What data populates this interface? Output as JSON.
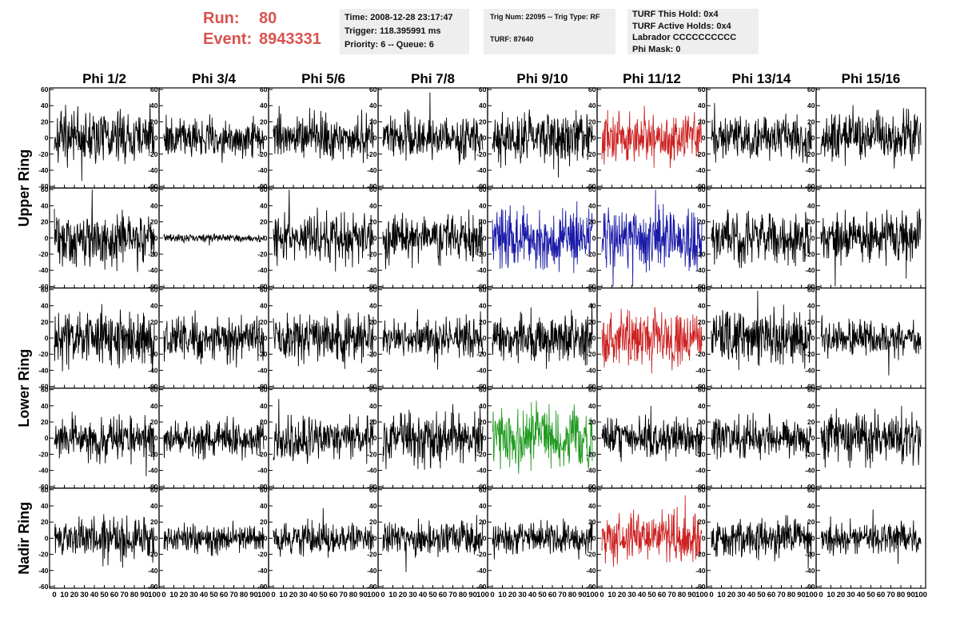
{
  "header": {
    "run_label": "Run:",
    "run_value": "80",
    "event_label": "Event:",
    "event_value": "8943331",
    "time_box": [
      "Time: 2008-12-28 23:17:47",
      "Trigger: 118.395991 ms",
      "Priority: 6 -- Queue: 6"
    ],
    "trig_box": [
      "Trig Num: 22095 -- Trig Type: RF",
      "",
      "TURF: 87640"
    ],
    "turf_box": [
      "TURF This Hold: 0x4",
      "TURF Active Holds: 0x4",
      "Labrador CCCCCCCCCC",
      "Phi Mask: 0"
    ]
  },
  "colors": {
    "header_red": "#d9534f",
    "trace_default": "#000000",
    "trace_red": "#cc2222",
    "trace_blue": "#1a1aa8",
    "trace_green": "#1f9a1f",
    "info_box_bg": "#eeeeee"
  },
  "chart_data": {
    "type": "line",
    "title": "",
    "column_labels": [
      "Phi 1/2",
      "Phi 3/4",
      "Phi 5/6",
      "Phi 7/8",
      "Phi 9/10",
      "Phi 11/12",
      "Phi 13/14",
      "Phi 15/16"
    ],
    "ring_labels": [
      "Upper Ring",
      "Lower Ring",
      "Nadir Ring"
    ],
    "ring_row_spans": [
      [
        0,
        1
      ],
      [
        2,
        3
      ],
      [
        4,
        4
      ]
    ],
    "rows": 5,
    "xlim": [
      0,
      100
    ],
    "ylim": [
      -62,
      62
    ],
    "x_ticks": [
      0,
      10,
      20,
      30,
      40,
      50,
      60,
      70,
      80,
      90,
      100
    ],
    "y_ticks": [
      -60,
      -40,
      -20,
      0,
      20,
      40,
      60
    ],
    "series_style": "sampled waveform (approx. 260 samples per panel, noise-like, shown as thin line)",
    "panels": [
      {
        "row": 0,
        "col": 0,
        "color": "black",
        "amplitude": 20
      },
      {
        "row": 0,
        "col": 1,
        "color": "black",
        "amplitude": 14
      },
      {
        "row": 0,
        "col": 2,
        "color": "black",
        "amplitude": 17
      },
      {
        "row": 0,
        "col": 3,
        "color": "black",
        "amplitude": 17
      },
      {
        "row": 0,
        "col": 4,
        "color": "black",
        "amplitude": 19
      },
      {
        "row": 0,
        "col": 5,
        "color": "red",
        "amplitude": 19
      },
      {
        "row": 0,
        "col": 6,
        "color": "black",
        "amplitude": 17
      },
      {
        "row": 0,
        "col": 7,
        "color": "black",
        "amplitude": 19
      },
      {
        "row": 1,
        "col": 0,
        "color": "black",
        "amplitude": 19
      },
      {
        "row": 1,
        "col": 1,
        "color": "black",
        "amplitude": 3
      },
      {
        "row": 1,
        "col": 2,
        "color": "black",
        "amplitude": 19
      },
      {
        "row": 1,
        "col": 3,
        "color": "black",
        "amplitude": 19
      },
      {
        "row": 1,
        "col": 4,
        "color": "blue",
        "amplitude": 22
      },
      {
        "row": 1,
        "col": 5,
        "color": "blue",
        "amplitude": 22
      },
      {
        "row": 1,
        "col": 6,
        "color": "black",
        "amplitude": 19
      },
      {
        "row": 1,
        "col": 7,
        "color": "black",
        "amplitude": 19
      },
      {
        "row": 2,
        "col": 0,
        "color": "black",
        "amplitude": 21
      },
      {
        "row": 2,
        "col": 1,
        "color": "black",
        "amplitude": 17
      },
      {
        "row": 2,
        "col": 2,
        "color": "black",
        "amplitude": 18
      },
      {
        "row": 2,
        "col": 3,
        "color": "black",
        "amplitude": 14
      },
      {
        "row": 2,
        "col": 4,
        "color": "black",
        "amplitude": 17
      },
      {
        "row": 2,
        "col": 5,
        "color": "red",
        "amplitude": 22
      },
      {
        "row": 2,
        "col": 6,
        "color": "black",
        "amplitude": 20
      },
      {
        "row": 2,
        "col": 7,
        "color": "black",
        "amplitude": 14
      },
      {
        "row": 3,
        "col": 0,
        "color": "black",
        "amplitude": 16
      },
      {
        "row": 3,
        "col": 1,
        "color": "black",
        "amplitude": 14
      },
      {
        "row": 3,
        "col": 2,
        "color": "black",
        "amplitude": 16
      },
      {
        "row": 3,
        "col": 3,
        "color": "black",
        "amplitude": 19
      },
      {
        "row": 3,
        "col": 4,
        "color": "green",
        "amplitude": 24
      },
      {
        "row": 3,
        "col": 5,
        "color": "black",
        "amplitude": 15
      },
      {
        "row": 3,
        "col": 6,
        "color": "black",
        "amplitude": 15
      },
      {
        "row": 3,
        "col": 7,
        "color": "black",
        "amplitude": 20
      },
      {
        "row": 4,
        "col": 0,
        "color": "black",
        "amplitude": 17
      },
      {
        "row": 4,
        "col": 1,
        "color": "black",
        "amplitude": 10
      },
      {
        "row": 4,
        "col": 2,
        "color": "black",
        "amplitude": 13
      },
      {
        "row": 4,
        "col": 3,
        "color": "black",
        "amplitude": 13
      },
      {
        "row": 4,
        "col": 4,
        "color": "black",
        "amplitude": 12
      },
      {
        "row": 4,
        "col": 5,
        "color": "red",
        "amplitude": 18
      },
      {
        "row": 4,
        "col": 6,
        "color": "black",
        "amplitude": 15
      },
      {
        "row": 4,
        "col": 7,
        "color": "black",
        "amplitude": 12
      }
    ]
  }
}
